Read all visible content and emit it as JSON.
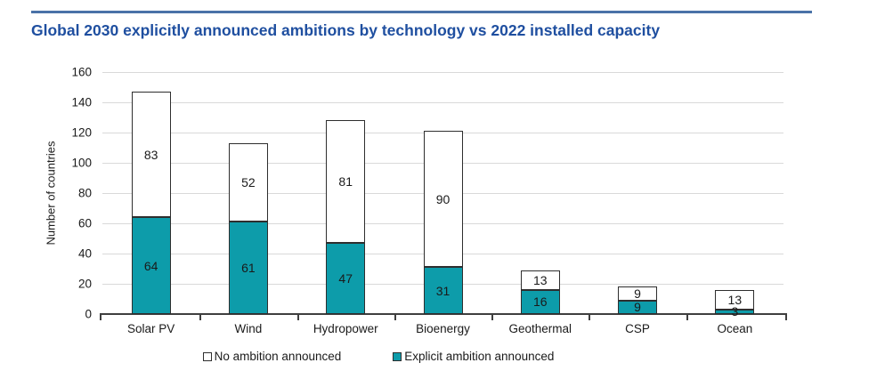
{
  "page": {
    "title": "Global 2030 explicitly announced ambitions by technology vs 2022 installed capacity"
  },
  "colors": {
    "title_text": "#1F4FA0",
    "top_rule": "#4A72A8",
    "explicit_fill": "#0D9CAA",
    "no_ambition_fill": "#FFFFFF",
    "bar_border": "#2E2E2E",
    "gridline": "#D9D9D9",
    "axis": "#3F3F3F"
  },
  "chart_data": {
    "type": "bar",
    "stacked": true,
    "title": "Global 2030 explicitly announced ambitions by technology vs 2022 installed capacity",
    "xlabel": "",
    "ylabel": "Number of countries",
    "ylim": [
      0,
      160
    ],
    "yticks": [
      0,
      20,
      40,
      60,
      80,
      100,
      120,
      140,
      160
    ],
    "grid": true,
    "legend_position": "bottom",
    "categories": [
      "Solar PV",
      "Wind",
      "Hydropower",
      "Bioenergy",
      "Geothermal",
      "CSP",
      "Ocean"
    ],
    "series": [
      {
        "name": "Explicit ambition announced",
        "color_key": "explicit_fill",
        "values": [
          64,
          61,
          47,
          31,
          16,
          9,
          3
        ]
      },
      {
        "name": "No ambition announced",
        "color_key": "no_ambition_fill",
        "values": [
          83,
          52,
          81,
          90,
          13,
          9,
          13
        ]
      }
    ],
    "totals": [
      147,
      113,
      128,
      121,
      29,
      18,
      16
    ],
    "legend": [
      {
        "label": "No ambition announced",
        "color_key": "no_ambition_fill"
      },
      {
        "label": "Explicit ambition announced",
        "color_key": "explicit_fill"
      }
    ]
  }
}
